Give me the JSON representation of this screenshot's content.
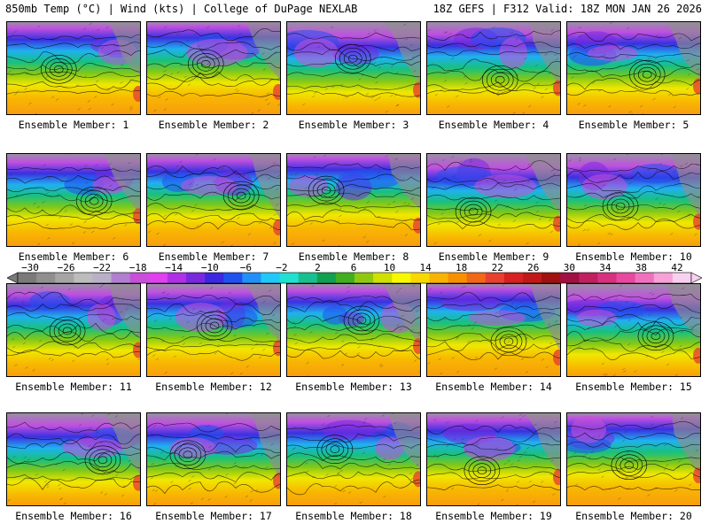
{
  "header": {
    "left": "850mb Temp (°C) | Wind (kts) | College of DuPage NEXLAB",
    "right": "18Z GEFS | F312 Valid: 18Z MON JAN 26 2026"
  },
  "members": [
    {
      "label": "Ensemble Member: 1"
    },
    {
      "label": "Ensemble Member: 2"
    },
    {
      "label": "Ensemble Member: 3"
    },
    {
      "label": "Ensemble Member: 4"
    },
    {
      "label": "Ensemble Member: 5"
    },
    {
      "label": "Ensemble Member: 6"
    },
    {
      "label": "Ensemble Member: 7"
    },
    {
      "label": "Ensemble Member: 8"
    },
    {
      "label": "Ensemble Member: 9"
    },
    {
      "label": "Ensemble Member: 10"
    },
    {
      "label": "Ensemble Member: 11"
    },
    {
      "label": "Ensemble Member: 12"
    },
    {
      "label": "Ensemble Member: 13"
    },
    {
      "label": "Ensemble Member: 14"
    },
    {
      "label": "Ensemble Member: 15"
    },
    {
      "label": "Ensemble Member: 16"
    },
    {
      "label": "Ensemble Member: 17"
    },
    {
      "label": "Ensemble Member: 18"
    },
    {
      "label": "Ensemble Member: 19"
    },
    {
      "label": "Ensemble Member: 20"
    }
  ],
  "colorbar": {
    "ticks": [
      "−30",
      "−26",
      "−22",
      "−18",
      "−14",
      "−10",
      "−6",
      "−2",
      "2",
      "6",
      "10",
      "14",
      "18",
      "22",
      "26",
      "30",
      "34",
      "38",
      "42"
    ],
    "colors": [
      "#7a7a7a",
      "#8f8f8f",
      "#a5a5a5",
      "#bcbcbc",
      "#b9b0c8",
      "#b07fd0",
      "#c850d8",
      "#e040f0",
      "#b030e8",
      "#7a28e0",
      "#3b28e0",
      "#2050f0",
      "#2090f8",
      "#20c8f8",
      "#20e0d0",
      "#18c090",
      "#10a050",
      "#40b020",
      "#90c810",
      "#d0e000",
      "#f8f800",
      "#f8d800",
      "#f8b400",
      "#f89000",
      "#f06818",
      "#e84030",
      "#d82020",
      "#c01818",
      "#a01010",
      "#a01040",
      "#c02060",
      "#d83080",
      "#e848a0",
      "#f070c0",
      "#f8a0d8",
      "#f8d0f0"
    ]
  }
}
